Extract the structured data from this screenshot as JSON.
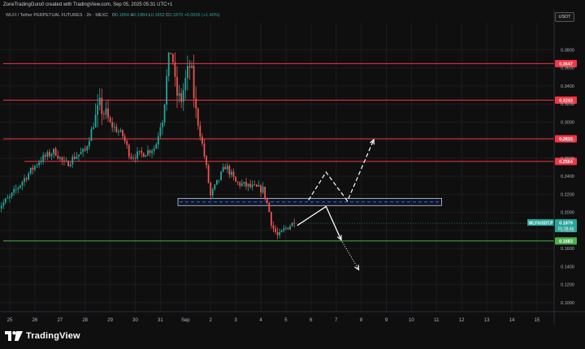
{
  "header": {
    "title": "ZoneTradingGuru0 created with TradingView.com, Sep 05, 2025 05:31 UTC+1"
  },
  "symbol": {
    "name": "WLFI / Tether PERPETUAL FUTURES · 2h · MEXC",
    "o_label": "O",
    "o": "0.1854",
    "h_label": "H",
    "h": "0.1884",
    "l_label": "L",
    "l": "0.1852",
    "c_label": "C",
    "c": "0.1879",
    "change": "+0.0026 (+1.40%)"
  },
  "currency": "USDT",
  "brand": "TradingView",
  "colors": {
    "background": "#0f0f0f",
    "bull": "#26a69a",
    "bear": "#ef5350",
    "resistance": "#f23645",
    "support": "#4caf50",
    "zone": "#2962ff",
    "projection": "#ffffff"
  },
  "chart_data": {
    "type": "candlestick",
    "y_scale": "linear",
    "ylim": [
      0.09,
      0.41
    ],
    "y_ticks": [
      "0.1000",
      "0.1200",
      "0.1400",
      "0.1600",
      "0.1800",
      "0.2000",
      "0.2200",
      "0.2400",
      "0.2600",
      "0.2800",
      "0.3000",
      "0.3200",
      "0.3400",
      "0.3600",
      "0.3800"
    ],
    "x_ticks": [
      "25",
      "26",
      "27",
      "28",
      "29",
      "30",
      "31",
      "Sep",
      "2",
      "3",
      "4",
      "5",
      "6",
      "7",
      "8",
      "9",
      "10",
      "11",
      "12",
      "13",
      "14",
      "15"
    ],
    "x_start_day": 24.5,
    "x_end_day": 47.4,
    "resistance_levels": [
      {
        "label": "0.3647",
        "value": 0.3647
      },
      {
        "label": "0.3243",
        "value": 0.3243
      },
      {
        "label": "0.2815",
        "value": 0.2815
      },
      {
        "label": "0.2564",
        "value": 0.2564
      }
    ],
    "support_levels": [
      {
        "label": "0.1683",
        "value": 0.1683
      }
    ],
    "last_price": {
      "label": "WLFIUSDT.P",
      "value": "0.1879",
      "countdown": "01:28:46"
    },
    "zone": {
      "top": 0.2155,
      "bottom": 0.2075,
      "mid": 0.2115,
      "x_from_day": 31.7,
      "x_to_day": 42.2
    },
    "projection_solid": [
      {
        "day": 36.45,
        "price": 0.1855
      },
      {
        "day": 37.6,
        "price": 0.2065
      },
      {
        "day": 38.2,
        "price": 0.1695
      }
    ],
    "projection_dashed": [
      {
        "day": 36.9,
        "price": 0.2135
      },
      {
        "day": 37.6,
        "price": 0.2445
      },
      {
        "day": 38.45,
        "price": 0.2125
      },
      {
        "day": 39.5,
        "price": 0.2805
      }
    ],
    "projection_dotted": [
      {
        "day": 38.2,
        "price": 0.1695
      },
      {
        "day": 38.9,
        "price": 0.1365
      }
    ],
    "price_waypoints": [
      {
        "day": 24.5,
        "price": 0.205
      },
      {
        "day": 25.0,
        "price": 0.216
      },
      {
        "day": 25.6,
        "price": 0.238
      },
      {
        "day": 26.2,
        "price": 0.258
      },
      {
        "day": 26.8,
        "price": 0.268
      },
      {
        "day": 27.2,
        "price": 0.252
      },
      {
        "day": 27.6,
        "price": 0.262
      },
      {
        "day": 28.0,
        "price": 0.268
      },
      {
        "day": 28.3,
        "price": 0.295
      },
      {
        "day": 28.6,
        "price": 0.318
      },
      {
        "day": 29.0,
        "price": 0.298
      },
      {
        "day": 29.5,
        "price": 0.285
      },
      {
        "day": 29.8,
        "price": 0.262
      },
      {
        "day": 30.3,
        "price": 0.265
      },
      {
        "day": 30.8,
        "price": 0.272
      },
      {
        "day": 31.1,
        "price": 0.31
      },
      {
        "day": 31.3,
        "price": 0.36
      },
      {
        "day": 31.45,
        "price": 0.385
      },
      {
        "day": 31.6,
        "price": 0.335
      },
      {
        "day": 31.8,
        "price": 0.322
      },
      {
        "day": 32.0,
        "price": 0.345
      },
      {
        "day": 32.2,
        "price": 0.365
      },
      {
        "day": 32.4,
        "price": 0.312
      },
      {
        "day": 32.6,
        "price": 0.285
      },
      {
        "day": 32.8,
        "price": 0.255
      },
      {
        "day": 33.0,
        "price": 0.218
      },
      {
        "day": 33.3,
        "price": 0.235
      },
      {
        "day": 33.6,
        "price": 0.252
      },
      {
        "day": 34.0,
        "price": 0.233
      },
      {
        "day": 34.6,
        "price": 0.228
      },
      {
        "day": 35.1,
        "price": 0.225
      },
      {
        "day": 35.3,
        "price": 0.205
      },
      {
        "day": 35.45,
        "price": 0.185
      },
      {
        "day": 35.7,
        "price": 0.172
      },
      {
        "day": 35.9,
        "price": 0.18
      },
      {
        "day": 36.1,
        "price": 0.185
      },
      {
        "day": 36.3,
        "price": 0.1879
      }
    ]
  }
}
